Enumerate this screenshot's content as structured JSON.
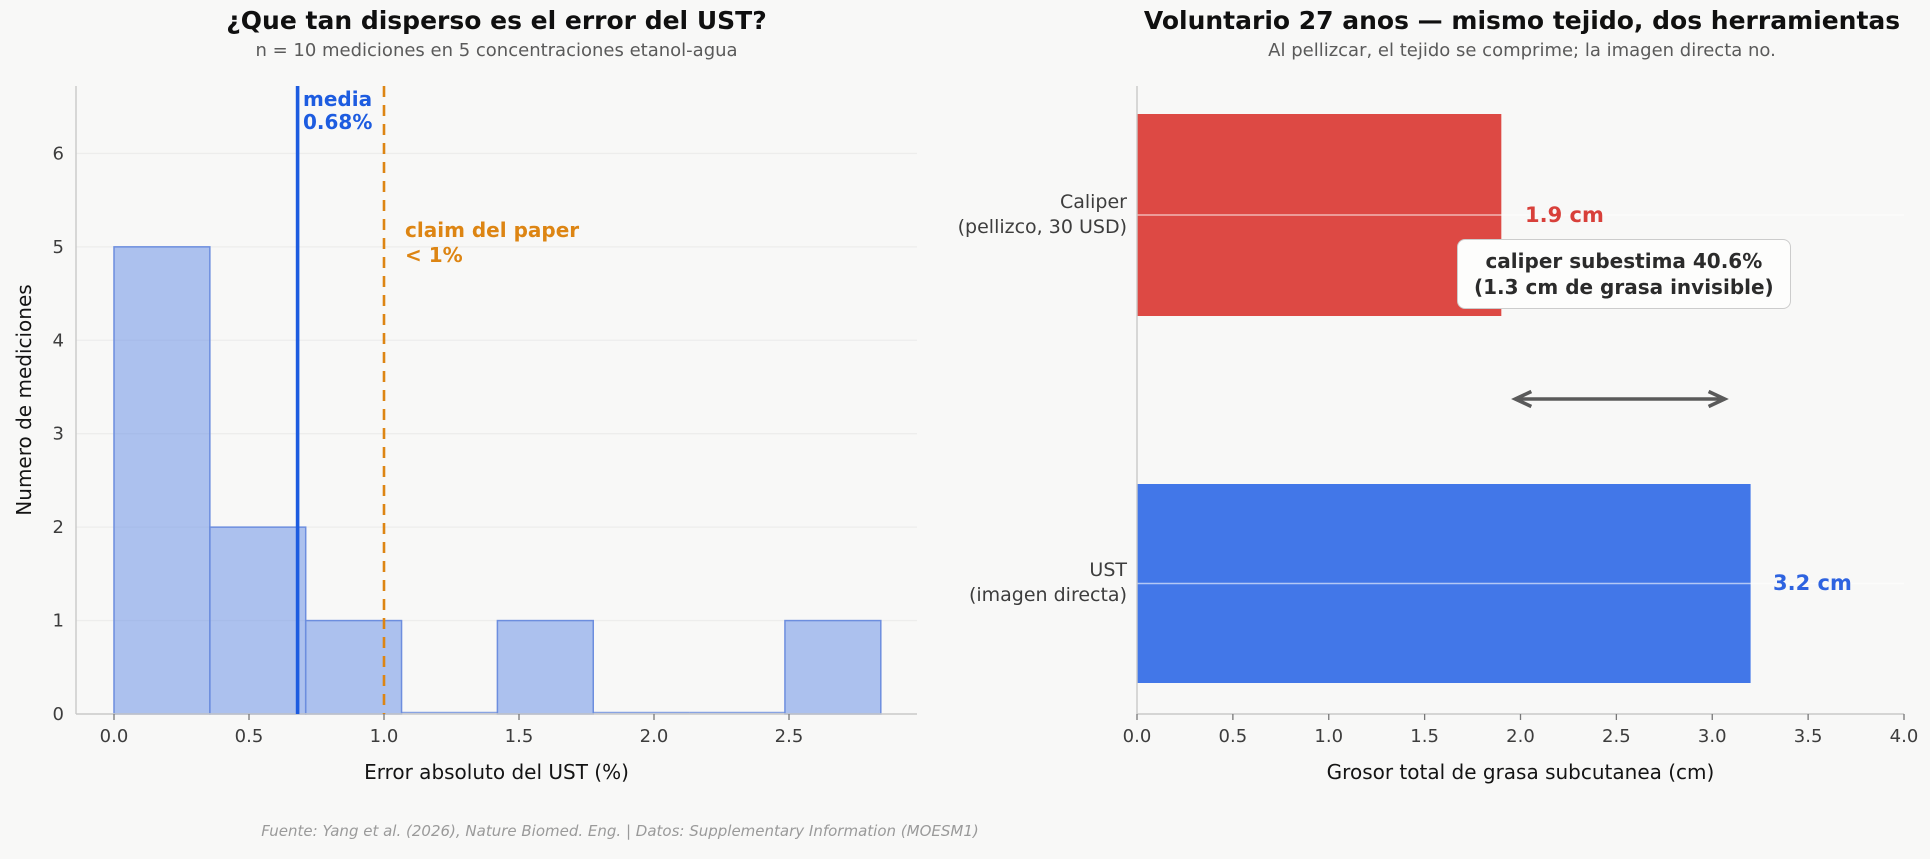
{
  "figure": {
    "background": "#f8f8f7",
    "footer": "Fuente: Yang et al. (2026), Nature Biomed. Eng. | Datos: Supplementary Information (MOESM1)"
  },
  "chart_data": [
    {
      "type": "bar",
      "subtype": "histogram",
      "title": "¿Que tan disperso es el error del UST?",
      "subtitle": "n = 10 mediciones en 5 concentraciones etanol-agua",
      "xlabel": "Error absoluto del UST (%)",
      "ylabel": "Numero de mediciones",
      "bin_start": 0.0,
      "bin_width": 0.355,
      "counts": [
        5,
        2,
        1,
        0,
        1,
        0,
        0,
        1
      ],
      "n_total": 10,
      "xlim": [
        -0.14,
        2.97
      ],
      "ylim": [
        0,
        6.72
      ],
      "xticks": [
        "0.0",
        "0.5",
        "1.0",
        "1.5",
        "2.0",
        "2.5"
      ],
      "xtick_values": [
        0.0,
        0.5,
        1.0,
        1.5,
        2.0,
        2.5
      ],
      "yticks": [
        "0",
        "1",
        "2",
        "3",
        "4",
        "5",
        "6"
      ],
      "ytick_values": [
        0,
        1,
        2,
        3,
        4,
        5,
        6
      ],
      "grid": "horizontal",
      "bar_fill": "#6e93e8",
      "bar_fill_opacity": 0.55,
      "bar_edge": "#6d8ede",
      "mean_line": {
        "value": 0.68,
        "label": "media\n0.68%",
        "color": "#1d5ce0",
        "style": "solid"
      },
      "claim_line": {
        "value": 1.0,
        "label": "claim del paper\n< 1%",
        "color": "#dd8513",
        "style": "dashed"
      }
    },
    {
      "type": "bar",
      "orientation": "horizontal",
      "title": "Voluntario 27 anos — mismo tejido, dos herramientas",
      "subtitle": "Al pellizcar, el tejido se comprime; la imagen directa no.",
      "xlabel": "Grosor total de grasa subcutanea (cm)",
      "categories": [
        "Caliper\n(pellizco, 30 USD)",
        "UST\n(imagen directa)"
      ],
      "values": [
        1.9,
        3.2
      ],
      "value_labels": [
        "1.9 cm",
        "3.2 cm"
      ],
      "bar_colors": [
        "#dd4944",
        "#4277e8"
      ],
      "xlim": [
        0,
        4
      ],
      "xticks": [
        "0.0",
        "0.5",
        "1.0",
        "1.5",
        "2.0",
        "2.5",
        "3.0",
        "3.5",
        "4.0"
      ],
      "xtick_values": [
        0.0,
        0.5,
        1.0,
        1.5,
        2.0,
        2.5,
        3.0,
        3.5,
        4.0
      ],
      "annotation": "caliper subestima 40.6%\n(1.3 cm de grasa invisible)",
      "difference_arrow": {
        "from_cm": 1.9,
        "to_cm": 3.2,
        "color": "#5a5a5a"
      }
    }
  ]
}
